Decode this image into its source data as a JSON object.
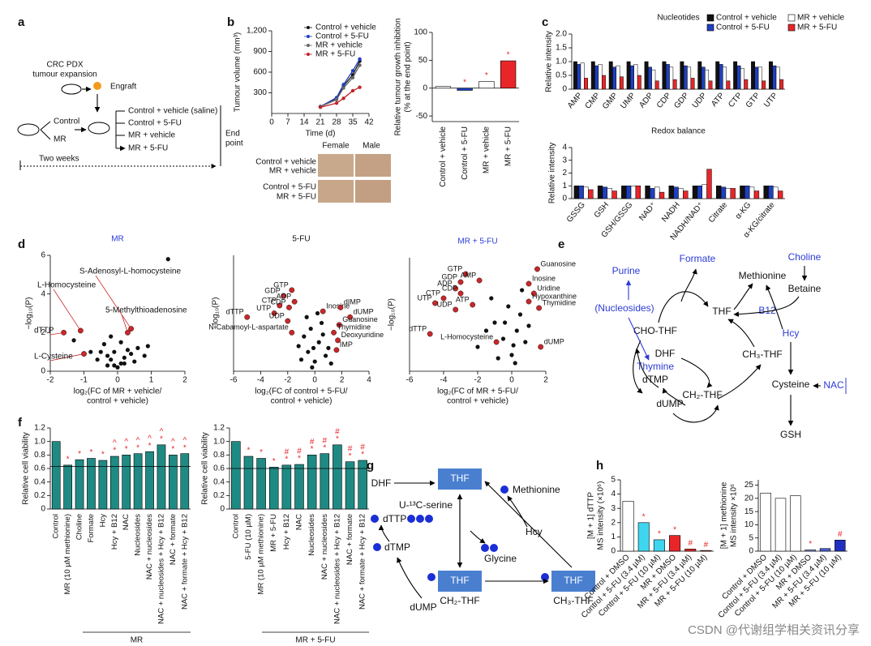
{
  "panel_labels": [
    "a",
    "b",
    "c",
    "d",
    "e",
    "f",
    "g",
    "h"
  ],
  "panel_a": {
    "expansion": [
      "CRC PDX",
      "tumour expansion"
    ],
    "engraft": "Engraft",
    "control": "Control",
    "mr": "MR",
    "groups": [
      "Control + vehicle (saline)",
      "Control + 5-FU",
      "MR + vehicle",
      "MR + 5-FU"
    ],
    "end_point": [
      "End",
      "point"
    ],
    "duration": "Two weeks"
  },
  "panel_b_photos": {
    "columns": [
      "Female",
      "Male"
    ],
    "rows": [
      [
        "Control + vehicle",
        "MR + vehicle"
      ],
      [
        "Control + 5-FU",
        "MR + 5-FU"
      ]
    ]
  },
  "chart_data": [
    {
      "type": "line",
      "ylabel": "Tumour volume (mm³)",
      "xlabel": "Time (d)",
      "x": [
        21,
        28,
        31,
        35,
        38
      ],
      "xlim": [
        0,
        42
      ],
      "xticks": [
        0,
        7,
        14,
        21,
        28,
        35,
        42
      ],
      "ylim": [
        0,
        1200
      ],
      "yticks": [
        300,
        600,
        900,
        {
          "value": 1200,
          "label": "1,200"
        }
      ],
      "series": [
        {
          "name": "Control + vehicle",
          "color": "#111111",
          "values": [
            100,
            220,
            400,
            560,
            760
          ]
        },
        {
          "name": "Control + 5-FU",
          "color": "#1f3fbf",
          "values": [
            100,
            230,
            420,
            620,
            790
          ]
        },
        {
          "name": "MR + vehicle",
          "color": "#666666",
          "values": [
            100,
            200,
            370,
            520,
            700
          ]
        },
        {
          "name": "MR + 5-FU",
          "color": "#c0242a",
          "values": [
            90,
            150,
            220,
            330,
            380
          ]
        }
      ]
    },
    {
      "type": "bar",
      "ylabel": [
        "Relative tumour growth inhibition",
        "(% at the end point)"
      ],
      "categories": [
        "Control + vehicle",
        "Control + 5-FU",
        "MR + vehicle",
        "MR + 5-FU"
      ],
      "values": [
        3,
        -4,
        12,
        49
      ],
      "colors": [
        "#ffffff",
        "#1f3fbf",
        "#ffffff",
        "#e8262a"
      ],
      "ylim": [
        -60,
        100
      ],
      "yticks": [
        -50,
        0,
        50,
        100
      ],
      "annotations": [
        [
          null,
          "*",
          "*",
          "*"
        ]
      ]
    },
    {
      "type": "grouped_bar",
      "title": "Nucleotides",
      "ylabel": "Relative intensity",
      "categories": [
        "AMP",
        "CMP",
        "GMP",
        "UMP",
        "ADP",
        "CDP",
        "GDP",
        "UDP",
        "ATP",
        "CTP",
        "GTP",
        "UTP"
      ],
      "ylim": [
        0,
        2
      ],
      "yticks": [
        0,
        0.5,
        {
          "value": 1,
          "label": "1.0"
        },
        1.5,
        {
          "value": 2,
          "label": "2.0"
        }
      ],
      "legend": "top-right",
      "series": [
        {
          "name": "Control + vehicle",
          "color": "#111111",
          "values": [
            1,
            1,
            1,
            1,
            1,
            1,
            1,
            1,
            1,
            1,
            1,
            1
          ]
        },
        {
          "name": "Control + 5-FU",
          "color": "#1f3fbf",
          "values": [
            0.9,
            0.85,
            0.8,
            0.85,
            0.8,
            0.9,
            0.85,
            0.8,
            0.9,
            0.85,
            0.8,
            0.85
          ]
        },
        {
          "name": "MR + vehicle",
          "color": "#ffffff",
          "values": [
            0.95,
            0.9,
            0.85,
            0.9,
            0.7,
            0.8,
            0.8,
            0.7,
            0.8,
            0.75,
            0.8,
            0.8
          ]
        },
        {
          "name": "MR + 5-FU",
          "color": "#e8262a",
          "values": [
            0.4,
            0.5,
            0.45,
            0.5,
            0.3,
            0.35,
            0.4,
            0.3,
            0.3,
            0.35,
            0.3,
            0.35
          ]
        }
      ]
    },
    {
      "type": "grouped_bar",
      "title": "Redox balance",
      "ylabel": "Relative intensity",
      "categories": [
        "GSSG",
        "GSH",
        "GSH/GSSG",
        "NAD⁺",
        "NADH",
        "NADH/NAD⁺",
        "Citrate",
        "α-KG",
        "α-KG/citrate"
      ],
      "ylim": [
        0,
        4
      ],
      "yticks": [
        0,
        1,
        2,
        3,
        4
      ],
      "series": [
        {
          "color": "#111111",
          "values": [
            1,
            1,
            1,
            1,
            1,
            1,
            1,
            1,
            1
          ]
        },
        {
          "color": "#1f3fbf",
          "values": [
            1,
            0.9,
            1,
            0.8,
            0.9,
            1,
            0.9,
            1,
            1
          ]
        },
        {
          "color": "#ffffff",
          "values": [
            0.9,
            0.8,
            1,
            0.9,
            0.8,
            1.1,
            0.8,
            0.9,
            0.9
          ]
        },
        {
          "color": "#e8262a",
          "values": [
            0.7,
            0.6,
            1,
            0.5,
            0.6,
            2.3,
            0.8,
            0.6,
            0.6
          ]
        }
      ]
    },
    {
      "type": "scatter",
      "title": "MR",
      "title_color": "#2b3bd6",
      "ylabel": "−log₁₀(P)",
      "xlabel": [
        "log₂(FC of MR + vehicle/",
        "control + vehicle)"
      ],
      "xlim": [
        -2,
        2
      ],
      "xticks": [
        -2,
        -1,
        0,
        1,
        2
      ],
      "ylim": [
        0,
        6
      ],
      "yticks": [
        0,
        2,
        4,
        6
      ],
      "x": [
        -1.6,
        -1.1,
        -1.0,
        0.4,
        0.3,
        1.5,
        -0.5,
        -0.3,
        -0.2,
        -0.1,
        0,
        0.1,
        0.2,
        0.3,
        -0.4,
        0.5,
        -0.6,
        0.6,
        -0.8,
        0.8,
        -0.2,
        0.1,
        -0.3,
        0.4,
        -1.3,
        0.9,
        0.2,
        -0.1
      ],
      "values": [
        2.0,
        2.1,
        0.9,
        2.2,
        2.0,
        5.8,
        1.0,
        0.8,
        0.6,
        0.3,
        0.2,
        0.4,
        0.7,
        1.1,
        1.4,
        0.5,
        0.6,
        1.2,
        1.0,
        0.8,
        1.8,
        1.5,
        0.3,
        0.9,
        1.6,
        1.3,
        0.4,
        1.0
      ],
      "point_labels": [
        "dTTP",
        "L-Homocysteine",
        "L-Cysteine",
        "S-Adenosyl-L-homocysteine",
        "5-Methylthioadenosine",
        null,
        null,
        null,
        null,
        null,
        null,
        null,
        null,
        null,
        null,
        null,
        null,
        null,
        null,
        null,
        null,
        null,
        null,
        null,
        null,
        null,
        null,
        null
      ]
    },
    {
      "type": "scatter",
      "title": "5-FU",
      "title_color": "#2b3bd6",
      "ylabel": "−log₁₀(P)",
      "xlabel": [
        "log₂(FC of control + 5-FU/",
        "control + vehicle)"
      ],
      "xlim": [
        -6,
        4
      ],
      "xticks": [
        -6,
        -4,
        -2,
        0,
        2,
        4
      ],
      "ylim": [
        0,
        6
      ],
      "x": [
        -1.7,
        -2.3,
        -1.5,
        -2.6,
        -1.9,
        -3.0,
        -5.0,
        -2.0,
        0.6,
        1.9,
        2.6,
        1.8,
        1.4,
        1.7,
        1.6,
        -1.7,
        -0.5,
        0,
        0.3,
        -0.8,
        0.8,
        -0.3,
        0.5,
        -1.0,
        1.0,
        -0.2,
        0.2,
        -1.2,
        0.6,
        -0.6,
        1.2,
        -0.1
      ],
      "values": [
        4.2,
        3.9,
        3.6,
        3.4,
        3.3,
        3.0,
        2.8,
        2.6,
        3.1,
        3.3,
        2.8,
        2.4,
        2.0,
        1.6,
        1.1,
        2.0,
        1.0,
        0.5,
        1.5,
        1.8,
        0.8,
        2.2,
        2.5,
        0.6,
        1.2,
        0.2,
        3.0,
        1.3,
        1.9,
        2.8,
        0.4,
        1.2
      ],
      "point_labels": [
        "GTP",
        "GDP",
        "ADP",
        "CTP",
        "CDP",
        "UTP",
        "dTTP",
        "UDP",
        "Inosine",
        "dIMP",
        "dUMP",
        "Guanosine",
        "Thymidine",
        "Deoxyuridine",
        "IMP",
        "N-Cabamoyl-L-aspartate",
        null,
        null,
        null,
        null,
        null,
        null,
        null,
        null,
        null,
        null,
        null,
        null,
        null,
        null,
        null,
        null
      ]
    },
    {
      "type": "scatter",
      "title": "MR + 5-FU",
      "title_color": "#2b3bd6",
      "ylabel": "−log₁₀(P)",
      "xlabel": [
        "log₂(FC of MR + 5-FU/",
        "control + vehicle)"
      ],
      "xlim": [
        -6,
        2
      ],
      "xticks": [
        -6,
        -4,
        -2,
        0,
        2
      ],
      "ylim": [
        0,
        7
      ],
      "x": [
        1.5,
        -2.7,
        -1.9,
        -3.0,
        1.0,
        -3.3,
        -3.0,
        1.3,
        -4.0,
        1.0,
        -2.3,
        -4.5,
        1.6,
        -3.3,
        -4.8,
        -0.9,
        1.7,
        -0.5,
        0,
        -1,
        0.3,
        -0.2,
        0.5,
        -1.5,
        0.8,
        -0.8,
        0.2,
        -1.2,
        0.6,
        -0.4,
        1.0,
        -2,
        0.1
      ],
      "values": [
        6.3,
        6.0,
        5.6,
        5.5,
        5.4,
        5.1,
        4.8,
        4.8,
        4.5,
        4.3,
        4.1,
        4.2,
        3.9,
        3.8,
        2.3,
        1.8,
        1.5,
        2.0,
        1.0,
        3.0,
        2.5,
        4.0,
        3.5,
        2.5,
        1.8,
        0.8,
        0.5,
        4.5,
        5.0,
        3.0,
        2.8,
        1.5,
        1.6
      ],
      "point_labels": [
        "Guanosine",
        "GTP",
        "AMP",
        "GDP",
        "Inosine",
        "ADP",
        "CDP",
        "Uridine",
        "CTP",
        "Hypoxanthine",
        "ATP",
        "UTP",
        "Thymidine",
        "UDP",
        "dTTP",
        "L-Homocysteine",
        "dUMP",
        null,
        null,
        null,
        null,
        null,
        null,
        null,
        null,
        null,
        null,
        null,
        null,
        null,
        null,
        null,
        null
      ]
    },
    {
      "type": "bar",
      "ylabel": "Relative cell viability",
      "categories": [
        "Control",
        "MR (10 µM methionine)",
        "Choline",
        "Formate",
        "Hcy",
        "Hcy + B12",
        "NAC",
        "Nucleosides",
        "NAC + nucleosides",
        "NAC + nucleosides + Hcy + B12",
        "NAC + formate",
        "NAC + formate + Hcy + B12"
      ],
      "values": [
        1.0,
        0.65,
        0.73,
        0.75,
        0.72,
        0.78,
        0.8,
        0.82,
        0.85,
        0.95,
        0.8,
        0.82
      ],
      "color": "#1f8a84",
      "ylim": [
        0,
        1.2
      ],
      "yticks": [
        0,
        0.2,
        0.4,
        0.6,
        0.8,
        {
          "value": 1,
          "label": "1.0"
        },
        1.2
      ],
      "reference_line": 0.63,
      "group_label": "MR",
      "annotations": [
        [
          null,
          "*",
          "*",
          "*",
          "*",
          "*",
          "*",
          "*",
          "*",
          "*",
          "*",
          "*"
        ],
        [
          null,
          null,
          null,
          null,
          null,
          "^",
          "^",
          "^",
          "^",
          "^",
          "^",
          "^"
        ]
      ]
    },
    {
      "type": "bar",
      "ylabel": "Relative cell viability",
      "categories": [
        "Control",
        "5-FU (10 µM)",
        "MR (10 µM methionine)",
        "MR + 5-FU",
        "Hcy + B12",
        "NAC",
        "Nucleosides",
        "NAC + nucleosides",
        "NAC + nucleosides + Hcy + B12",
        "NAC + formate",
        "NAC + formate + Hcy + B12"
      ],
      "values": [
        1.0,
        0.78,
        0.75,
        0.62,
        0.65,
        0.66,
        0.8,
        0.82,
        0.95,
        0.7,
        0.72
      ],
      "color": "#1f8a84",
      "ylim": [
        0,
        1.2
      ],
      "yticks": [
        0,
        0.2,
        0.4,
        0.6,
        0.8,
        {
          "value": 1,
          "label": "1.0"
        },
        1.2
      ],
      "reference_line": 0.6,
      "group_label": "MR + 5-FU",
      "annotations": [
        [
          null,
          "*",
          "*",
          "*",
          "*",
          "*",
          "*",
          "*",
          "*",
          "*",
          "*"
        ],
        [
          null,
          null,
          null,
          null,
          "#",
          "#",
          "#",
          "#",
          "#",
          "#",
          "#"
        ]
      ]
    },
    {
      "type": "bar",
      "ylabel": [
        "[M + 1] dTTP",
        "MS intensity (×10⁶)"
      ],
      "categories": [
        "Control + DMSO",
        "Control + 5-FU (3.4 µM)",
        "Control + 5-FU (10 µM)",
        "MR + DMSO",
        "MR + 5-FU (3.4 µM)",
        "MR + 5-FU (10 µM)"
      ],
      "values": [
        3.5,
        2.0,
        0.8,
        1.1,
        0.15,
        0.05
      ],
      "colors": [
        "#ffffff",
        "#3ed6ef",
        "#3ed6ef",
        "#e8262a",
        "#e8262a",
        "#e8262a"
      ],
      "ylim": [
        0,
        5
      ],
      "yticks": [
        0,
        1,
        2,
        3,
        4,
        5
      ],
      "annotations": [
        [
          null,
          "*",
          "*",
          "*",
          "#",
          "#"
        ]
      ]
    },
    {
      "type": "bar",
      "ylabel": [
        "[M + 1] methionine",
        "MS intensity ×10⁶"
      ],
      "categories": [
        "Control + DMSO",
        "Control + 5-FU (3.4 µM)",
        "Control + 5-FU (10 µM)",
        "MR + DMSO",
        "MR + 5-FU (3.4 µM)",
        "MR + 5-FU (10 µM)"
      ],
      "values": [
        22,
        20,
        21,
        0.5,
        1.0,
        4.2
      ],
      "colors": [
        "#ffffff",
        "#ffffff",
        "#ffffff",
        "#8fa0f0",
        "#4a5ed6",
        "#1f2fbf"
      ],
      "ylim": [
        0,
        27
      ],
      "yticks": [
        0,
        5,
        10,
        15,
        20,
        25
      ],
      "annotations": [
        [
          null,
          null,
          null,
          "*",
          null,
          "#"
        ]
      ]
    }
  ],
  "panel_e": {
    "purine": "Purine",
    "formate": "Formate",
    "choline": "Choline",
    "methionine": "Methionine",
    "betaine": "Betaine",
    "nucleosides": "(Nucleosides)",
    "thf": "THF",
    "b12": "B12",
    "cho_thf": "CHO-THF",
    "hcy": "Hcy",
    "dhf": "DHF",
    "ch3_thf": "CH₃-THF",
    "thymine": "Thymine",
    "dtmp": "dTMP",
    "cysteine": "Cysteine",
    "nac": "NAC",
    "ch2_thf": "CH₂-THF",
    "dump": "dUMP",
    "gsh": "GSH"
  },
  "panel_g": {
    "dhf": "DHF",
    "thf_top": "THF",
    "methionine": "Methionine",
    "serine": "U-¹³C-serine",
    "dttp": "dTTP",
    "hcy": "Hcy",
    "glycine": "Glycine",
    "dtmp": "dTMP",
    "dump": "dUMP",
    "thf_left": "THF",
    "thf_right": "THF",
    "ch2_thf": "CH₂-THF",
    "ch3_thf": "CH₃-THF"
  },
  "watermark": "CSDN @代谢组学相关资讯分享"
}
